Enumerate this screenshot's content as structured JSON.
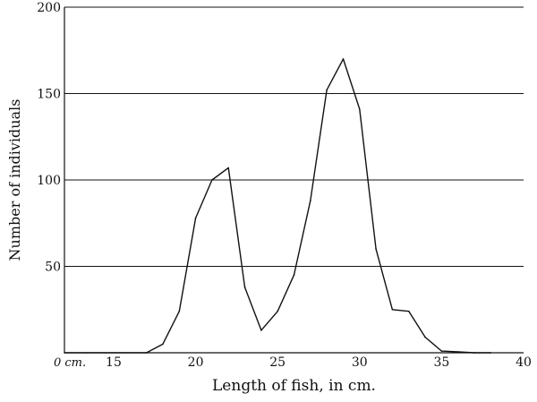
{
  "chart_data": {
    "type": "line",
    "title": "",
    "xlabel": "Length of fish, in cm.",
    "ylabel": "Number of individuals",
    "x_origin_label": "0 cm.",
    "xlim": [
      12,
      40
    ],
    "ylim": [
      0,
      200
    ],
    "x_ticks": [
      15,
      20,
      25,
      30,
      35,
      40
    ],
    "y_ticks": [
      50,
      100,
      150,
      200
    ],
    "grid": "horizontal",
    "legend": "none",
    "series": [
      {
        "x": [
          12,
          17,
          18,
          19,
          20,
          21,
          22,
          23,
          24,
          25,
          26,
          27,
          28,
          29,
          30,
          31,
          32,
          33,
          34,
          35,
          36,
          37,
          38
        ],
        "y": [
          0,
          0,
          5,
          24,
          78,
          100,
          107,
          38,
          13,
          24,
          45,
          88,
          152,
          170,
          141,
          60,
          25,
          24,
          9,
          1,
          0.5,
          0,
          0
        ]
      }
    ],
    "line_color": "#111111"
  }
}
